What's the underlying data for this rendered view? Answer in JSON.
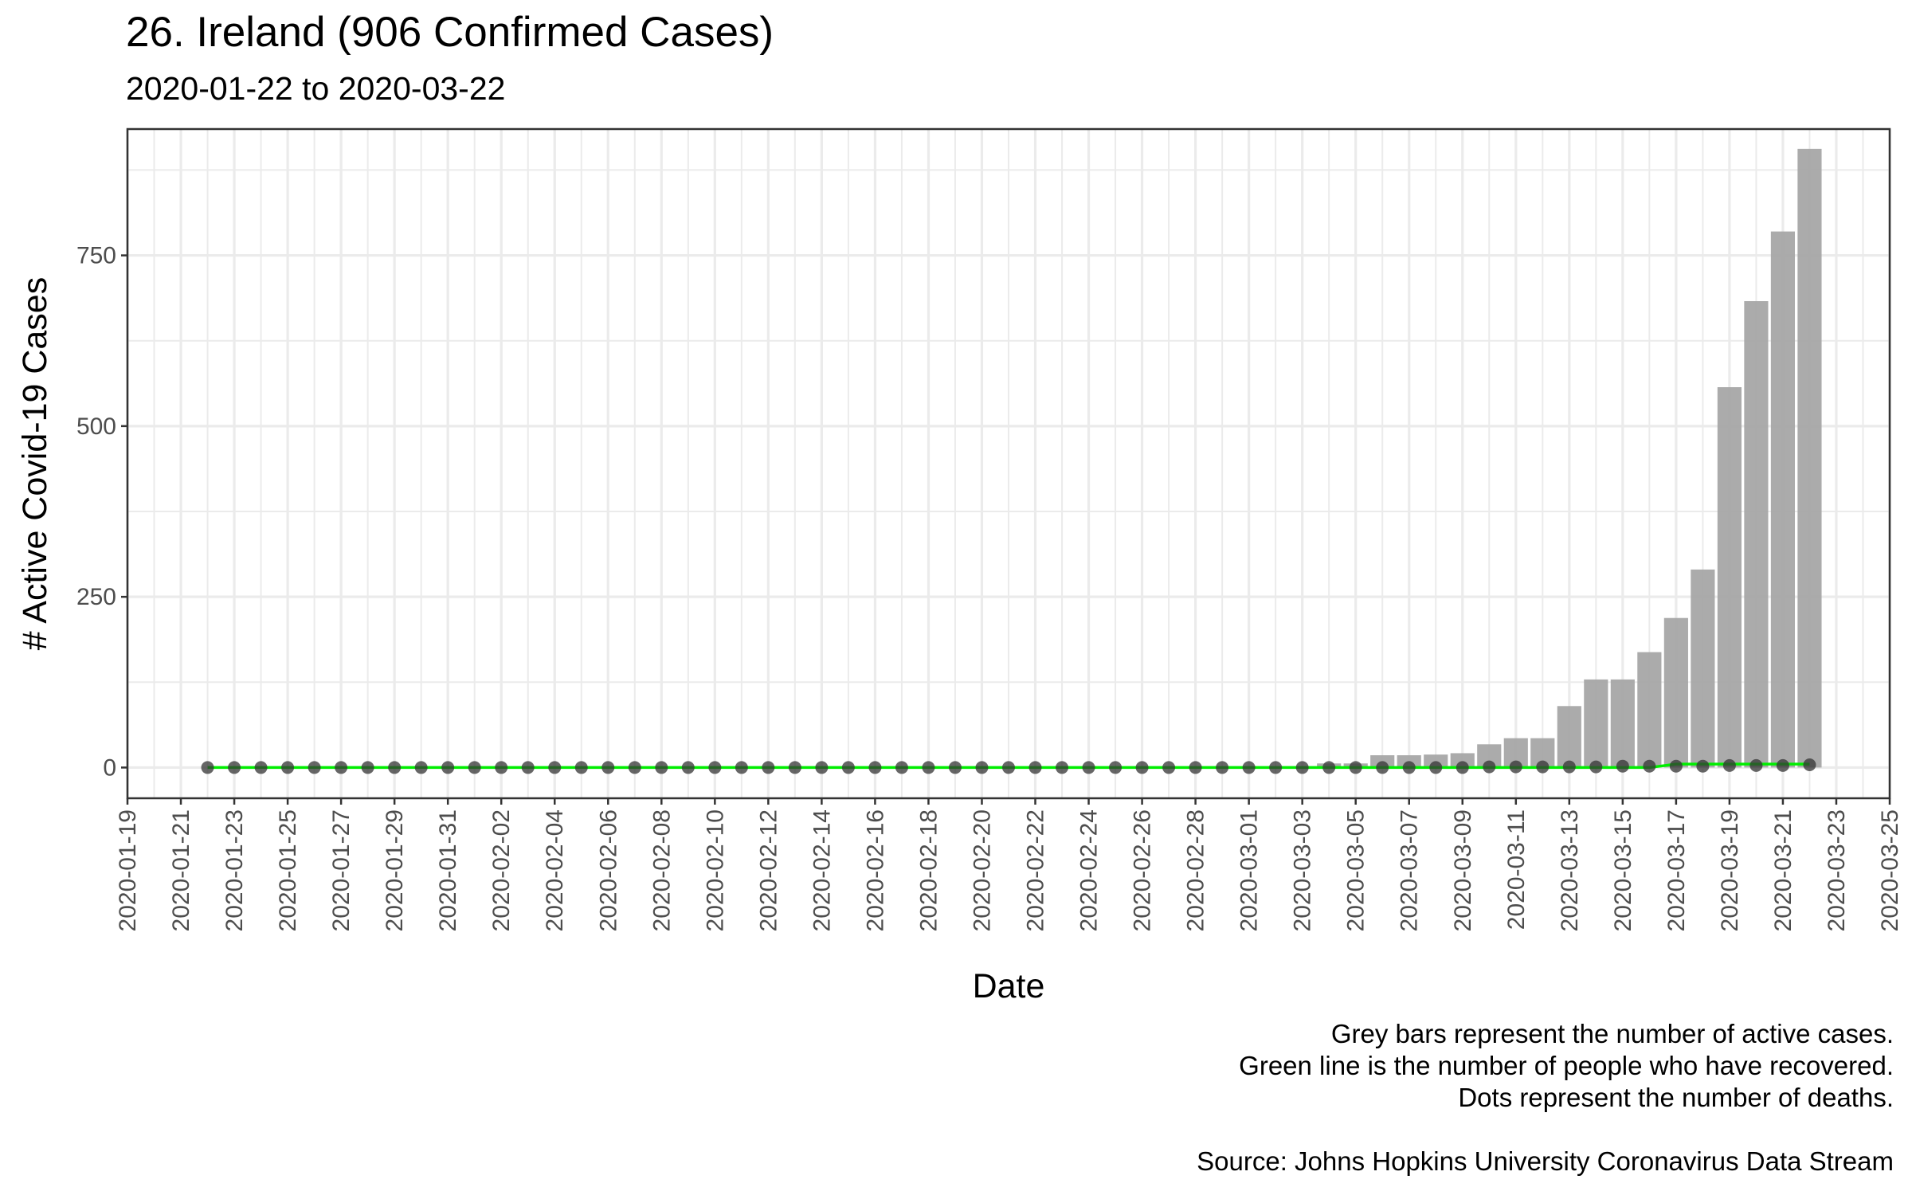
{
  "title": "26. Ireland (906 Confirmed Cases)",
  "subtitle": "2020-01-22 to 2020-03-22",
  "caption": [
    "Grey bars represent the number of active cases.",
    "Green line is the number of people who have recovered.",
    "Dots represent the number of deaths.",
    "",
    "Source: Johns Hopkins University Coronavirus Data Stream"
  ],
  "colors": {
    "bars": "#a6a6a6",
    "recovered_line": "#00ee00",
    "deaths_dots": "#333333",
    "grid": "#ebebeb",
    "panel_border": "#333333"
  },
  "chart_data": {
    "type": "bar",
    "xlabel": "Date",
    "ylabel": "# Active Covid-19 Cases",
    "xlim": [
      "2020-01-19",
      "2020-03-25"
    ],
    "ylim": [
      -45,
      935
    ],
    "x_ticks": [
      "2020-01-19",
      "2020-01-21",
      "2020-01-23",
      "2020-01-25",
      "2020-01-27",
      "2020-01-29",
      "2020-01-31",
      "2020-02-02",
      "2020-02-04",
      "2020-02-06",
      "2020-02-08",
      "2020-02-10",
      "2020-02-12",
      "2020-02-14",
      "2020-02-16",
      "2020-02-18",
      "2020-02-20",
      "2020-02-22",
      "2020-02-24",
      "2020-02-26",
      "2020-02-28",
      "2020-03-01",
      "2020-03-03",
      "2020-03-05",
      "2020-03-07",
      "2020-03-09",
      "2020-03-11",
      "2020-03-13",
      "2020-03-15",
      "2020-03-17",
      "2020-03-19",
      "2020-03-21",
      "2020-03-23",
      "2020-03-25"
    ],
    "y_ticks": [
      0,
      250,
      500,
      750
    ],
    "grid": true,
    "dates": [
      "2020-01-22",
      "2020-01-23",
      "2020-01-24",
      "2020-01-25",
      "2020-01-26",
      "2020-01-27",
      "2020-01-28",
      "2020-01-29",
      "2020-01-30",
      "2020-01-31",
      "2020-02-01",
      "2020-02-02",
      "2020-02-03",
      "2020-02-04",
      "2020-02-05",
      "2020-02-06",
      "2020-02-07",
      "2020-02-08",
      "2020-02-09",
      "2020-02-10",
      "2020-02-11",
      "2020-02-12",
      "2020-02-13",
      "2020-02-14",
      "2020-02-15",
      "2020-02-16",
      "2020-02-17",
      "2020-02-18",
      "2020-02-19",
      "2020-02-20",
      "2020-02-21",
      "2020-02-22",
      "2020-02-23",
      "2020-02-24",
      "2020-02-25",
      "2020-02-26",
      "2020-02-27",
      "2020-02-28",
      "2020-02-29",
      "2020-03-01",
      "2020-03-02",
      "2020-03-03",
      "2020-03-04",
      "2020-03-05",
      "2020-03-06",
      "2020-03-07",
      "2020-03-08",
      "2020-03-09",
      "2020-03-10",
      "2020-03-11",
      "2020-03-12",
      "2020-03-13",
      "2020-03-14",
      "2020-03-15",
      "2020-03-16",
      "2020-03-17",
      "2020-03-18",
      "2020-03-19",
      "2020-03-20",
      "2020-03-21",
      "2020-03-22"
    ],
    "series": [
      {
        "name": "Active cases",
        "mark": "bar",
        "values": [
          0,
          0,
          0,
          0,
          0,
          0,
          0,
          0,
          0,
          0,
          0,
          0,
          0,
          0,
          0,
          0,
          0,
          0,
          0,
          0,
          0,
          0,
          0,
          0,
          0,
          0,
          0,
          0,
          0,
          0,
          0,
          0,
          0,
          0,
          0,
          0,
          0,
          0,
          0,
          1,
          1,
          1,
          6,
          6,
          18,
          18,
          19,
          21,
          34,
          43,
          43,
          90,
          129,
          129,
          169,
          219,
          290,
          557,
          683,
          785,
          906
        ]
      },
      {
        "name": "Recovered",
        "mark": "line",
        "values": [
          0,
          0,
          0,
          0,
          0,
          0,
          0,
          0,
          0,
          0,
          0,
          0,
          0,
          0,
          0,
          0,
          0,
          0,
          0,
          0,
          0,
          0,
          0,
          0,
          0,
          0,
          0,
          0,
          0,
          0,
          0,
          0,
          0,
          0,
          0,
          0,
          0,
          0,
          0,
          0,
          0,
          0,
          0,
          0,
          0,
          0,
          0,
          0,
          0,
          0,
          0,
          0,
          0,
          0,
          0,
          5,
          5,
          5,
          5,
          5,
          5
        ]
      },
      {
        "name": "Deaths",
        "mark": "point",
        "values": [
          0,
          0,
          0,
          0,
          0,
          0,
          0,
          0,
          0,
          0,
          0,
          0,
          0,
          0,
          0,
          0,
          0,
          0,
          0,
          0,
          0,
          0,
          0,
          0,
          0,
          0,
          0,
          0,
          0,
          0,
          0,
          0,
          0,
          0,
          0,
          0,
          0,
          0,
          0,
          0,
          0,
          0,
          0,
          0,
          0,
          0,
          0,
          0,
          1,
          1,
          1,
          1,
          1,
          2,
          2,
          2,
          2,
          3,
          3,
          3,
          4
        ]
      }
    ]
  }
}
